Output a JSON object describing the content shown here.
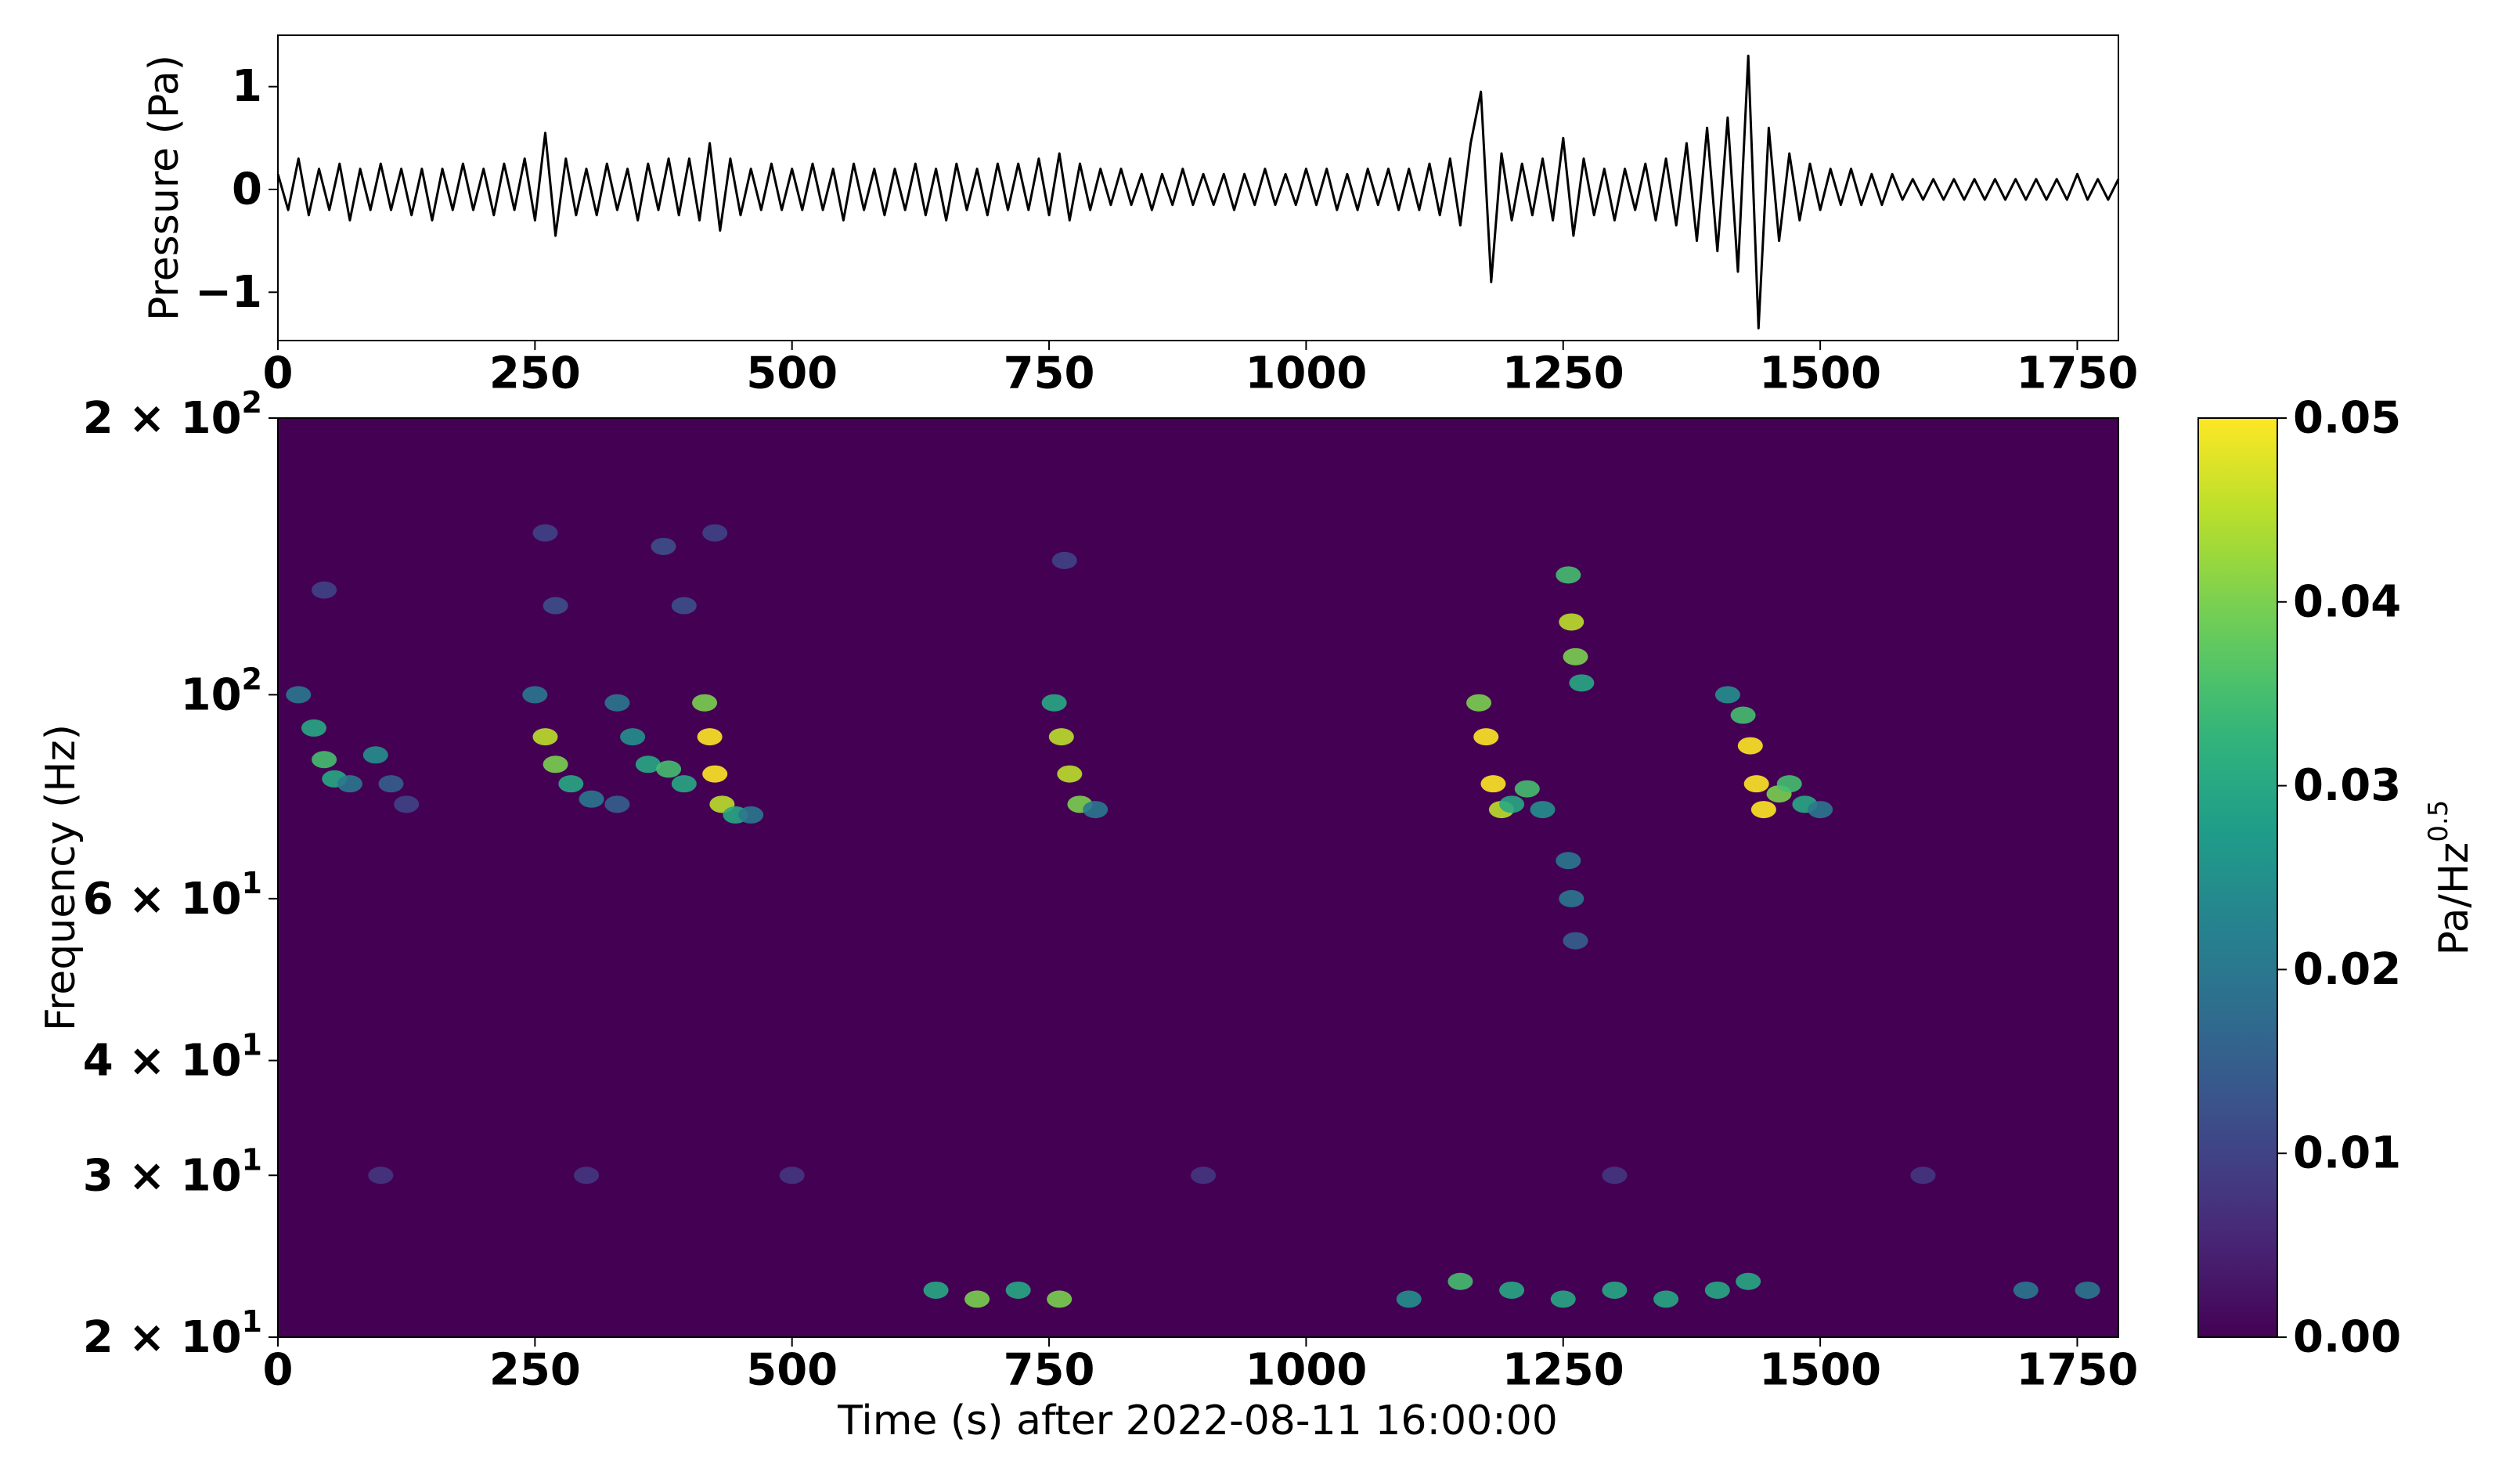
{
  "chart_data": [
    {
      "type": "line",
      "ylabel": "Pressure (Pa)",
      "xlim": [
        0,
        1790
      ],
      "ylim": [
        -1.47,
        1.5
      ],
      "xticks": [
        0,
        250,
        500,
        750,
        1000,
        1250,
        1500,
        1750
      ],
      "yticks": [
        {
          "value": -1,
          "label": "−1"
        },
        0,
        1
      ],
      "color": "#000000",
      "x": [
        0,
        10,
        20,
        30,
        40,
        50,
        60,
        70,
        80,
        90,
        100,
        110,
        120,
        130,
        140,
        150,
        160,
        170,
        180,
        190,
        200,
        210,
        220,
        230,
        240,
        250,
        260,
        270,
        280,
        290,
        300,
        310,
        320,
        330,
        340,
        350,
        360,
        370,
        380,
        390,
        400,
        410,
        420,
        430,
        440,
        450,
        460,
        470,
        480,
        490,
        500,
        510,
        520,
        530,
        540,
        550,
        560,
        570,
        580,
        590,
        600,
        610,
        620,
        630,
        640,
        650,
        660,
        670,
        680,
        690,
        700,
        710,
        720,
        730,
        740,
        750,
        760,
        770,
        780,
        790,
        800,
        810,
        820,
        830,
        840,
        850,
        860,
        870,
        880,
        890,
        900,
        910,
        920,
        930,
        940,
        950,
        960,
        970,
        980,
        990,
        1000,
        1010,
        1020,
        1030,
        1040,
        1050,
        1060,
        1070,
        1080,
        1090,
        1100,
        1110,
        1120,
        1130,
        1140,
        1150,
        1160,
        1170,
        1180,
        1190,
        1200,
        1210,
        1220,
        1230,
        1240,
        1250,
        1260,
        1270,
        1280,
        1290,
        1300,
        1310,
        1320,
        1330,
        1340,
        1350,
        1360,
        1370,
        1380,
        1390,
        1400,
        1410,
        1420,
        1430,
        1440,
        1450,
        1460,
        1470,
        1480,
        1490,
        1500,
        1510,
        1520,
        1530,
        1540,
        1550,
        1560,
        1570,
        1580,
        1590,
        1600,
        1610,
        1620,
        1630,
        1640,
        1650,
        1660,
        1670,
        1680,
        1690,
        1700,
        1710,
        1720,
        1730,
        1740,
        1750,
        1760,
        1770,
        1780,
        1790
      ],
      "values": [
        0.15,
        -0.2,
        0.3,
        -0.25,
        0.2,
        -0.2,
        0.25,
        -0.3,
        0.2,
        -0.2,
        0.25,
        -0.2,
        0.2,
        -0.25,
        0.2,
        -0.3,
        0.2,
        -0.2,
        0.25,
        -0.2,
        0.2,
        -0.25,
        0.25,
        -0.2,
        0.3,
        -0.3,
        0.55,
        -0.45,
        0.3,
        -0.25,
        0.2,
        -0.25,
        0.25,
        -0.2,
        0.2,
        -0.3,
        0.25,
        -0.2,
        0.3,
        -0.25,
        0.3,
        -0.3,
        0.45,
        -0.4,
        0.3,
        -0.25,
        0.2,
        -0.2,
        0.25,
        -0.2,
        0.2,
        -0.2,
        0.25,
        -0.2,
        0.2,
        -0.3,
        0.25,
        -0.2,
        0.2,
        -0.25,
        0.2,
        -0.2,
        0.25,
        -0.25,
        0.2,
        -0.3,
        0.25,
        -0.2,
        0.2,
        -0.25,
        0.25,
        -0.2,
        0.25,
        -0.2,
        0.3,
        -0.25,
        0.35,
        -0.3,
        0.25,
        -0.2,
        0.2,
        -0.15,
        0.2,
        -0.15,
        0.15,
        -0.2,
        0.15,
        -0.15,
        0.2,
        -0.15,
        0.15,
        -0.15,
        0.15,
        -0.2,
        0.15,
        -0.15,
        0.2,
        -0.15,
        0.15,
        -0.15,
        0.2,
        -0.15,
        0.2,
        -0.2,
        0.15,
        -0.2,
        0.2,
        -0.15,
        0.2,
        -0.2,
        0.2,
        -0.2,
        0.25,
        -0.25,
        0.3,
        -0.35,
        0.45,
        0.95,
        -0.9,
        0.35,
        -0.3,
        0.25,
        -0.25,
        0.3,
        -0.3,
        0.5,
        -0.45,
        0.3,
        -0.25,
        0.2,
        -0.3,
        0.2,
        -0.2,
        0.25,
        -0.3,
        0.3,
        -0.35,
        0.45,
        -0.5,
        0.6,
        -0.6,
        0.7,
        -0.8,
        1.3,
        -1.35,
        0.6,
        -0.5,
        0.35,
        -0.3,
        0.25,
        -0.2,
        0.2,
        -0.15,
        0.2,
        -0.15,
        0.15,
        -0.15,
        0.15,
        -0.1,
        0.1,
        -0.1,
        0.1,
        -0.1,
        0.1,
        -0.1,
        0.1,
        -0.1,
        0.1,
        -0.1,
        0.1,
        -0.1,
        0.1,
        -0.1,
        0.1,
        -0.1,
        0.15,
        -0.1,
        0.1,
        -0.1,
        0.1
      ]
    },
    {
      "type": "spectrogram",
      "xlabel": "Time (s) after 2022-08-11 16:00:00",
      "ylabel": "Frequency (Hz)",
      "xlim": [
        0,
        1790
      ],
      "ylim": [
        20,
        200
      ],
      "yscale": "log",
      "xticks": [
        0,
        250,
        500,
        750,
        1000,
        1250,
        1500,
        1750
      ],
      "yticks": [
        {
          "value": 20,
          "label": "2 × 10",
          "sup": "1"
        },
        {
          "value": 30,
          "label": "3 × 10",
          "sup": "1"
        },
        {
          "value": 40,
          "label": "4 × 10",
          "sup": "1"
        },
        {
          "value": 60,
          "label": "6 × 10",
          "sup": "1"
        },
        {
          "value": 100,
          "label": "10",
          "sup": "2"
        },
        {
          "value": 200,
          "label": "2 × 10",
          "sup": "2"
        }
      ],
      "colormap": "viridis",
      "clim": [
        0,
        0.05
      ],
      "cticks": [
        {
          "value": 0,
          "label": "0.00"
        },
        {
          "value": 0.01,
          "label": "0.01"
        },
        {
          "value": 0.02,
          "label": "0.02"
        },
        {
          "value": 0.03,
          "label": "0.03"
        },
        {
          "value": 0.04,
          "label": "0.04"
        },
        {
          "value": 0.05,
          "label": "0.05"
        }
      ],
      "colorbar_label": "Pa/Hz",
      "colorbar_label_sup": "0.5",
      "x": [
        20,
        35,
        45,
        55,
        70,
        95,
        110,
        125,
        250,
        260,
        270,
        285,
        305,
        330,
        330,
        345,
        360,
        380,
        395,
        415,
        420,
        425,
        432,
        445,
        460,
        755,
        762,
        770,
        780,
        795,
        1168,
        1175,
        1182,
        1190,
        1200,
        1215,
        1230,
        1255,
        1258,
        1262,
        1268,
        1255,
        1258,
        1262,
        1410,
        1425,
        1432,
        1438,
        1445,
        1460,
        1470,
        1485,
        1500,
        45,
        260,
        270,
        375,
        395,
        425,
        765,
        100,
        300,
        500,
        900,
        1300,
        1600,
        640,
        680,
        720,
        760,
        1100,
        1150,
        1200,
        1250,
        1300,
        1350,
        1400,
        1430,
        1700,
        1760
      ],
      "y": [
        100,
        92,
        85,
        81,
        80,
        86,
        80,
        76,
        100,
        90,
        84,
        80,
        77,
        76,
        98,
        90,
        84,
        83,
        80,
        98,
        90,
        82,
        76,
        74,
        74,
        98,
        90,
        82,
        76,
        75,
        98,
        90,
        80,
        75,
        76,
        79,
        75,
        135,
        120,
        110,
        103,
        66,
        60,
        54,
        100,
        95,
        88,
        80,
        75,
        78,
        80,
        76,
        75,
        130,
        150,
        125,
        145,
        125,
        150,
        140,
        30,
        30,
        30,
        30,
        30,
        30,
        22.5,
        22,
        22.5,
        22,
        22,
        23,
        22.5,
        22,
        22.5,
        22,
        22.5,
        23,
        22.5,
        22.5
      ],
      "values": [
        0.02,
        0.03,
        0.035,
        0.03,
        0.02,
        0.025,
        0.015,
        0.01,
        0.02,
        0.045,
        0.04,
        0.03,
        0.02,
        0.015,
        0.02,
        0.025,
        0.03,
        0.035,
        0.03,
        0.04,
        0.05,
        0.05,
        0.045,
        0.03,
        0.02,
        0.03,
        0.045,
        0.045,
        0.04,
        0.02,
        0.04,
        0.05,
        0.05,
        0.045,
        0.03,
        0.035,
        0.025,
        0.035,
        0.045,
        0.04,
        0.03,
        0.02,
        0.02,
        0.015,
        0.025,
        0.035,
        0.05,
        0.05,
        0.05,
        0.04,
        0.035,
        0.03,
        0.02,
        0.01,
        0.01,
        0.012,
        0.012,
        0.012,
        0.01,
        0.01,
        0.008,
        0.008,
        0.008,
        0.008,
        0.008,
        0.008,
        0.03,
        0.04,
        0.03,
        0.04,
        0.025,
        0.035,
        0.03,
        0.03,
        0.03,
        0.03,
        0.03,
        0.03,
        0.02,
        0.02
      ]
    }
  ]
}
